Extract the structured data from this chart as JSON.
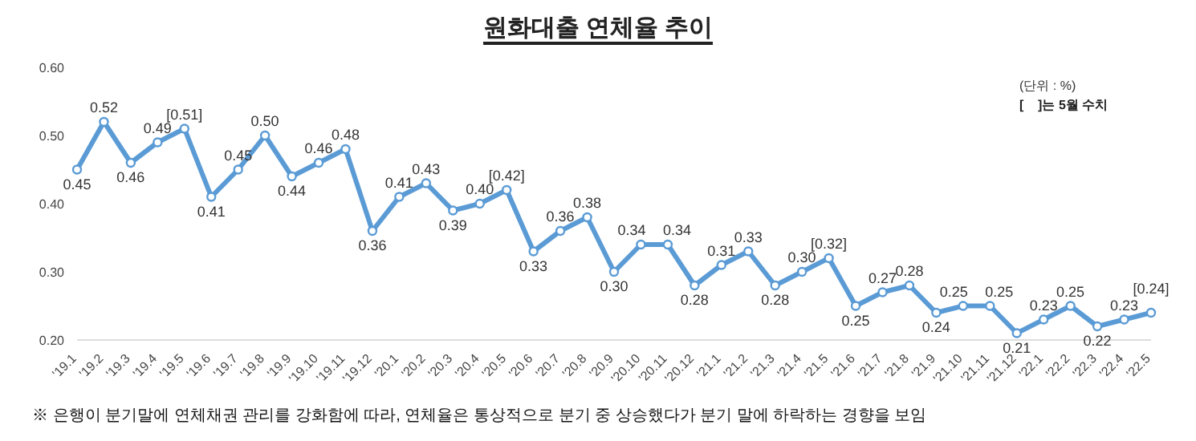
{
  "chart_data": {
    "type": "line",
    "title": "원화대출 연체율 추이",
    "categories": [
      "'19.1",
      "'19.2",
      "'19.3",
      "'19.4",
      "'19.5",
      "'19.6",
      "'19.7",
      "'19.8",
      "'19.9",
      "'19.10",
      "'19.11",
      "'19.12",
      "'20.1",
      "'20.2",
      "'20.3",
      "'20.4",
      "'20.5",
      "'20.6",
      "'20.7",
      "'20.8",
      "'20.9",
      "'20.10",
      "'20.11",
      "'20.12",
      "'21.1",
      "'21.2",
      "'21.3",
      "'21.4",
      "'21.5",
      "'21.6",
      "'21.7",
      "'21.8",
      "'21.9",
      "'21.10",
      "'21.11",
      "'21.12",
      "'22.1",
      "'22.2",
      "'22.3",
      "'22.4",
      "'22.5"
    ],
    "series": [
      {
        "color": "#5b9bd5",
        "values": [
          0.45,
          0.52,
          0.46,
          0.49,
          0.51,
          0.41,
          0.45,
          0.5,
          0.44,
          0.46,
          0.48,
          0.36,
          0.41,
          0.43,
          0.39,
          0.4,
          0.42,
          0.33,
          0.36,
          0.38,
          0.3,
          0.34,
          0.34,
          0.28,
          0.31,
          0.33,
          0.28,
          0.3,
          0.32,
          0.25,
          0.27,
          0.28,
          0.24,
          0.25,
          0.25,
          0.21,
          0.23,
          0.25,
          0.22,
          0.23,
          0.24
        ],
        "value_labels": [
          "0.45",
          "0.52",
          "0.46",
          "0.49",
          "[0.51]",
          "0.41",
          "0.45",
          "0.50",
          "0.44",
          "0.46",
          "0.48",
          "0.36",
          "0.41",
          "0.43",
          "0.39",
          "0.40",
          "[0.42]",
          "0.33",
          "0.36",
          "0.38",
          "0.30",
          "0.34",
          "0.34",
          "0.28",
          "0.31",
          "0.33",
          "0.28",
          "0.30",
          "[0.32]",
          "0.25",
          "0.27",
          "0.28",
          "0.24",
          "0.25",
          "0.25",
          "0.21",
          "0.23",
          "0.25",
          "0.22",
          "0.23",
          "[0.24]"
        ]
      }
    ],
    "ylim": [
      0.2,
      0.6
    ],
    "yticks": [
      {
        "value": 0.2,
        "label": "0.20"
      },
      {
        "value": 0.3,
        "label": "0.30"
      },
      {
        "value": 0.4,
        "label": "0.40"
      },
      {
        "value": 0.5,
        "label": "0.50"
      },
      {
        "value": 0.6,
        "label": "0.60"
      }
    ],
    "marker": "circle",
    "line_style": "solid",
    "grid": false,
    "annotations": [
      "(단위 : %)",
      "[    ]는 5월 수치",
      "※ 은행이 분기말에 연체채권 관리를 강화함에 따라, 연체율은 통상적으로 분기 중 상승했다가 분기 말에 하락하는 경향을 보임"
    ]
  }
}
